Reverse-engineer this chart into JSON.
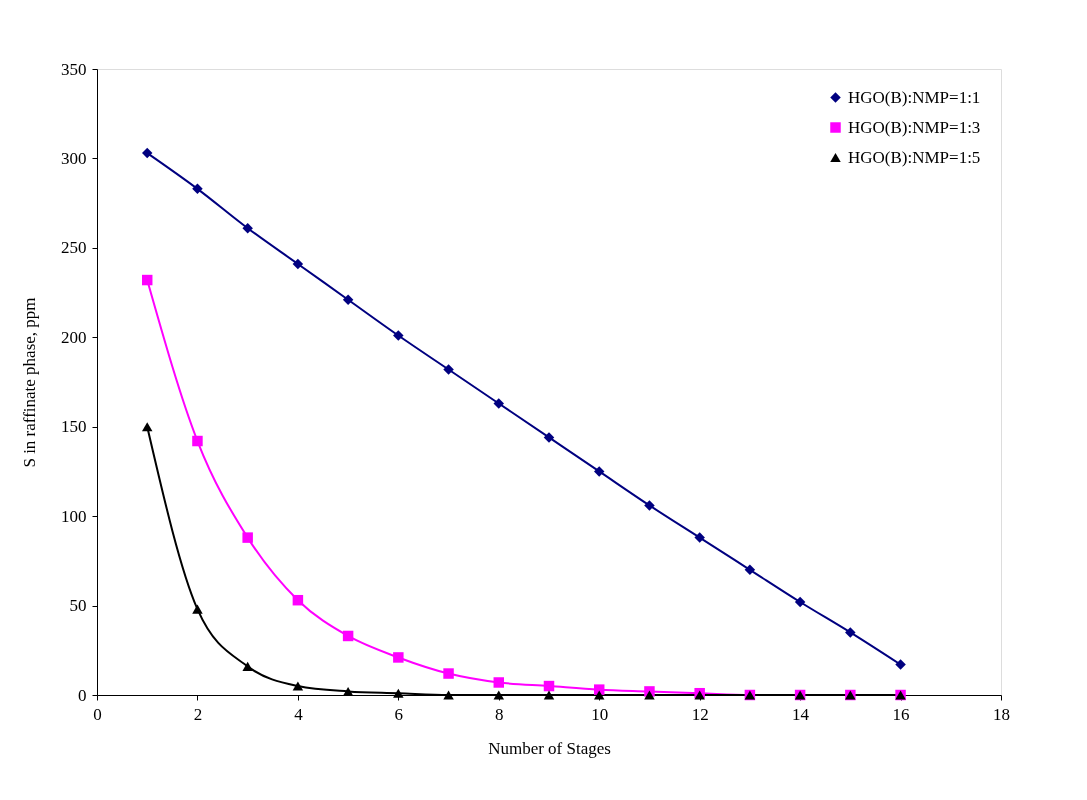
{
  "chart_data": {
    "type": "line",
    "xlabel": "Number of Stages",
    "ylabel": "S in raffinate phase, ppm",
    "x": [
      1,
      2,
      3,
      4,
      5,
      6,
      7,
      8,
      9,
      10,
      11,
      12,
      13,
      14,
      15,
      16
    ],
    "series": [
      {
        "name": "HGO(B):NMP=1:1",
        "color": "#000080",
        "marker": "diamond",
        "values": [
          303,
          283,
          261,
          241,
          221,
          201,
          182,
          163,
          144,
          125,
          106,
          88,
          70,
          52,
          35,
          17
        ]
      },
      {
        "name": " HGO(B):NMP=1:3",
        "color": "#ff00ff",
        "marker": "square",
        "values": [
          232,
          142,
          88,
          53,
          33,
          21,
          12,
          7,
          5,
          3,
          2,
          1,
          0,
          0,
          0,
          0
        ]
      },
      {
        "name": "HGO(B):NMP=1:5",
        "color": "#000000",
        "marker": "triangle",
        "values": [
          150,
          48,
          16,
          5,
          2,
          1,
          0,
          0,
          0,
          0,
          0,
          0,
          0,
          0,
          0,
          0
        ]
      }
    ],
    "xlim": [
      0,
      18
    ],
    "xticks": [
      0,
      2,
      4,
      6,
      8,
      10,
      12,
      14,
      16,
      18
    ],
    "ylim": [
      0,
      350
    ],
    "yticks": [
      0,
      50,
      100,
      150,
      200,
      250,
      300,
      350
    ],
    "grid": false,
    "legend": "top right",
    "line_style": "solid"
  }
}
